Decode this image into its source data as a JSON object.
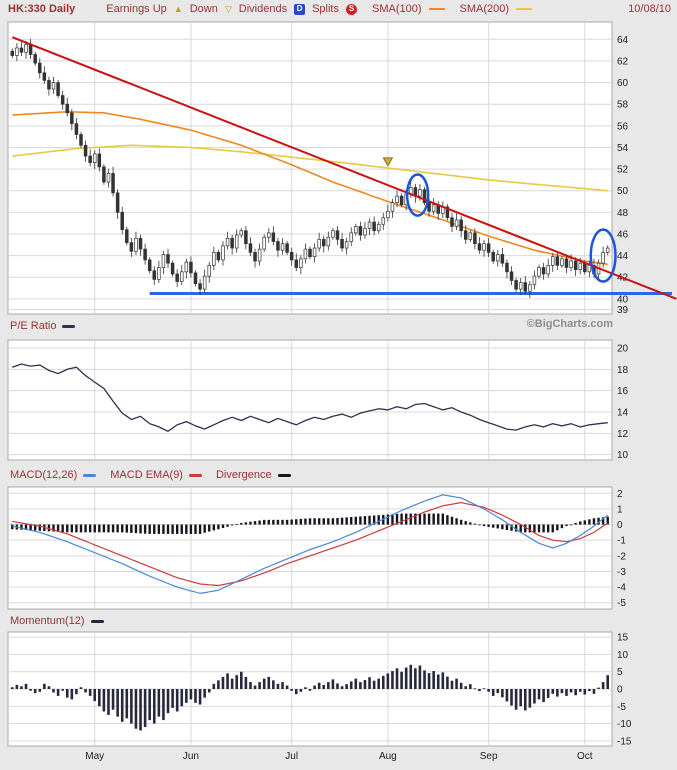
{
  "header": {
    "symbol": "HK:330 Daily",
    "earnings_up_label": "Earnings Up",
    "earnings_up_icon": "▲",
    "down_label": "Down",
    "earnings_down_icon": "▽",
    "dividends_label": "Dividends",
    "dividends_glyph": "D",
    "splits_label": "Splits",
    "splits_glyph": "S",
    "sma100_label": "SMA(100)",
    "sma200_label": "SMA(200)",
    "date": "10/08/10"
  },
  "watermark": "©BigCharts.com",
  "panels": {
    "pe_label": "P/E Ratio",
    "macd_label": "MACD(12,26)",
    "macd_ema_label": "MACD EMA(9)",
    "divergence_label": "Divergence",
    "momentum_label": "Momentum(12)"
  },
  "colors": {
    "background": "#e8e8e8",
    "panel_bg": "#ffffff",
    "grid": "#d9d9d9",
    "panel_border": "#a8a8a8",
    "text": "#222222",
    "header_text": "#993333",
    "candle": "#333333",
    "sma100": "#ef8822",
    "sma200": "#e9c943",
    "trendline": "#cc1111",
    "support": "#2a66e8",
    "annotation": "#1a57d6",
    "macd_line": "#4a86d8",
    "macd_signal": "#cc3b3b",
    "histogram": "#15151f",
    "pe_line": "#31314f",
    "momentum_bar": "#28283c",
    "watermark": "#8c8c8c",
    "marker_gold": "#d2a93c"
  },
  "chart_data": [
    {
      "type": "candlestick",
      "name": "price",
      "title": "HK:330 Daily",
      "n_days": 131,
      "ylim": [
        38.6,
        65.6
      ],
      "y_ticks": [
        64,
        62,
        60,
        58,
        56,
        54,
        52,
        50,
        48,
        46,
        44,
        42,
        40,
        39
      ],
      "x_axis": {
        "labels": [
          "May",
          "Jun",
          "Jul",
          "Aug",
          "Sep",
          "Oct"
        ],
        "day_index": [
          18,
          39,
          61,
          82,
          104,
          125
        ]
      },
      "close": [
        62.5,
        63.2,
        62.8,
        63.5,
        62.6,
        61.8,
        60.9,
        60.2,
        59.4,
        60.0,
        58.8,
        58.0,
        57.2,
        56.2,
        55.2,
        54.2,
        53.2,
        52.6,
        53.4,
        52.2,
        50.8,
        51.6,
        49.8,
        48.0,
        46.4,
        45.2,
        44.4,
        45.6,
        44.6,
        43.6,
        42.6,
        41.8,
        42.9,
        44.1,
        43.3,
        42.3,
        41.6,
        42.5,
        43.4,
        42.4,
        41.4,
        40.9,
        42.1,
        43.1,
        44.3,
        43.6,
        44.9,
        45.6,
        44.7,
        45.9,
        46.3,
        45.1,
        44.3,
        43.5,
        44.6,
        45.7,
        46.1,
        45.3,
        44.5,
        45.1,
        44.3,
        43.6,
        42.9,
        43.7,
        44.6,
        43.9,
        44.7,
        45.5,
        44.9,
        45.7,
        46.3,
        45.5,
        44.7,
        45.3,
        46.1,
        46.7,
        45.9,
        46.5,
        47.1,
        46.3,
        46.9,
        47.5,
        48.1,
        48.9,
        49.5,
        48.7,
        49.7,
        50.3,
        49.5,
        50.1,
        48.9,
        48.1,
        48.7,
        47.9,
        48.5,
        47.5,
        46.7,
        47.3,
        46.3,
        45.5,
        46.1,
        45.1,
        44.5,
        45.1,
        44.3,
        43.5,
        44.1,
        43.3,
        42.5,
        41.7,
        40.9,
        41.5,
        40.7,
        41.3,
        42.1,
        42.9,
        42.3,
        43.1,
        43.9,
        43.1,
        43.7,
        42.9,
        43.5,
        42.7,
        43.3,
        42.5,
        43.1,
        42.3,
        43.3,
        44.3,
        44.7
      ],
      "sma100_keypoints": [
        [
          0,
          57.0
        ],
        [
          12,
          57.3
        ],
        [
          20,
          57.2
        ],
        [
          28,
          56.6
        ],
        [
          39,
          55.6
        ],
        [
          50,
          54.2
        ],
        [
          61,
          52.4
        ],
        [
          70,
          50.8
        ],
        [
          82,
          49.0
        ],
        [
          92,
          47.6
        ],
        [
          104,
          45.8
        ],
        [
          114,
          44.5
        ],
        [
          125,
          43.5
        ],
        [
          130,
          43.2
        ]
      ],
      "sma200_keypoints": [
        [
          0,
          53.2
        ],
        [
          14,
          53.9
        ],
        [
          26,
          54.2
        ],
        [
          39,
          54.0
        ],
        [
          50,
          53.6
        ],
        [
          61,
          53.1
        ],
        [
          72,
          52.6
        ],
        [
          82,
          52.1
        ],
        [
          92,
          51.6
        ],
        [
          104,
          51.0
        ],
        [
          114,
          50.6
        ],
        [
          125,
          50.2
        ],
        [
          130,
          50.0
        ]
      ],
      "trendline": {
        "points": [
          [
            0,
            64.2
          ],
          [
            145,
            40.0
          ]
        ]
      },
      "support_line": {
        "price": 40.5,
        "start_day": 30,
        "extends_to_right_edge": true
      },
      "annotations": {
        "ellipses": [
          {
            "day": 88.5,
            "price": 49.6,
            "rx_days": 2.3,
            "ry_price": 1.9
          },
          {
            "day": 129.0,
            "price": 44.0,
            "rx_days": 2.7,
            "ry_price": 2.4
          }
        ],
        "marker": {
          "day": 82,
          "price": 52.3,
          "type": "earnings-down-triangle"
        }
      }
    },
    {
      "type": "line",
      "name": "pe_ratio",
      "title": "P/E Ratio",
      "ylim": [
        9.5,
        20.75
      ],
      "y_ticks": [
        20,
        18,
        16,
        14,
        12,
        10
      ],
      "keypoints": [
        [
          0,
          18.2
        ],
        [
          2,
          18.5
        ],
        [
          4,
          18.3
        ],
        [
          6,
          18.4
        ],
        [
          8,
          17.9
        ],
        [
          10,
          17.6
        ],
        [
          12,
          18.0
        ],
        [
          14,
          18.2
        ],
        [
          16,
          17.4
        ],
        [
          18,
          16.8
        ],
        [
          20,
          16.2
        ],
        [
          22,
          15.0
        ],
        [
          24,
          13.9
        ],
        [
          26,
          13.3
        ],
        [
          28,
          13.6
        ],
        [
          30,
          12.9
        ],
        [
          32,
          12.6
        ],
        [
          34,
          12.2
        ],
        [
          36,
          12.8
        ],
        [
          38,
          13.1
        ],
        [
          40,
          12.7
        ],
        [
          42,
          12.4
        ],
        [
          44,
          12.8
        ],
        [
          46,
          13.2
        ],
        [
          48,
          13.5
        ],
        [
          50,
          13.2
        ],
        [
          52,
          13.6
        ],
        [
          54,
          13.3
        ],
        [
          56,
          13.0
        ],
        [
          58,
          13.4
        ],
        [
          60,
          13.1
        ],
        [
          62,
          12.8
        ],
        [
          64,
          13.2
        ],
        [
          66,
          13.5
        ],
        [
          68,
          13.3
        ],
        [
          70,
          13.6
        ],
        [
          72,
          13.8
        ],
        [
          74,
          13.5
        ],
        [
          76,
          13.9
        ],
        [
          78,
          14.1
        ],
        [
          80,
          14.3
        ],
        [
          82,
          14.2
        ],
        [
          84,
          14.5
        ],
        [
          86,
          14.3
        ],
        [
          88,
          14.7
        ],
        [
          90,
          14.8
        ],
        [
          92,
          14.5
        ],
        [
          94,
          14.2
        ],
        [
          96,
          14.4
        ],
        [
          98,
          14.0
        ],
        [
          100,
          13.7
        ],
        [
          102,
          13.3
        ],
        [
          104,
          13.0
        ],
        [
          106,
          12.7
        ],
        [
          108,
          12.4
        ],
        [
          110,
          12.3
        ],
        [
          112,
          12.6
        ],
        [
          114,
          12.8
        ],
        [
          116,
          12.6
        ],
        [
          118,
          12.9
        ],
        [
          120,
          12.7
        ],
        [
          122,
          12.9
        ],
        [
          124,
          12.6
        ],
        [
          126,
          12.8
        ],
        [
          128,
          12.9
        ],
        [
          130,
          13.0
        ]
      ]
    },
    {
      "type": "line+histogram",
      "name": "macd",
      "title": "MACD(12,26)",
      "ylim": [
        -5.4,
        2.4
      ],
      "y_ticks": [
        2,
        1,
        0,
        -1,
        -2,
        -3,
        -4,
        -5
      ],
      "series": [
        {
          "name": "MACD(12,26)",
          "color": "blue",
          "keypoints": [
            [
              0,
              -0.1
            ],
            [
              6,
              -0.5
            ],
            [
              12,
              -1.1
            ],
            [
              18,
              -1.8
            ],
            [
              24,
              -2.5
            ],
            [
              30,
              -3.3
            ],
            [
              36,
              -4.0
            ],
            [
              41,
              -4.4
            ],
            [
              45,
              -4.2
            ],
            [
              50,
              -3.5
            ],
            [
              55,
              -2.8
            ],
            [
              60,
              -2.2
            ],
            [
              65,
              -1.6
            ],
            [
              70,
              -1.1
            ],
            [
              75,
              -0.5
            ],
            [
              80,
              0.2
            ],
            [
              85,
              0.9
            ],
            [
              90,
              1.5
            ],
            [
              94,
              1.9
            ],
            [
              98,
              1.7
            ],
            [
              103,
              1.0
            ],
            [
              107,
              0.3
            ],
            [
              111,
              -0.5
            ],
            [
              115,
              -1.2
            ],
            [
              118,
              -1.5
            ],
            [
              121,
              -1.2
            ],
            [
              124,
              -0.7
            ],
            [
              127,
              -0.1
            ],
            [
              130,
              0.6
            ]
          ]
        },
        {
          "name": "MACD EMA(9)",
          "color": "red",
          "keypoints": [
            [
              0,
              0.2
            ],
            [
              6,
              -0.1
            ],
            [
              12,
              -0.6
            ],
            [
              18,
              -1.3
            ],
            [
              24,
              -2.0
            ],
            [
              30,
              -2.7
            ],
            [
              36,
              -3.4
            ],
            [
              41,
              -3.8
            ],
            [
              45,
              -3.9
            ],
            [
              50,
              -3.6
            ],
            [
              55,
              -3.1
            ],
            [
              60,
              -2.5
            ],
            [
              65,
              -2.0
            ],
            [
              70,
              -1.5
            ],
            [
              75,
              -1.0
            ],
            [
              80,
              -0.4
            ],
            [
              85,
              0.2
            ],
            [
              90,
              0.8
            ],
            [
              94,
              1.2
            ],
            [
              98,
              1.4
            ],
            [
              103,
              1.1
            ],
            [
              107,
              0.6
            ],
            [
              111,
              0.0
            ],
            [
              115,
              -0.7
            ],
            [
              118,
              -1.0
            ],
            [
              121,
              -1.1
            ],
            [
              124,
              -0.9
            ],
            [
              127,
              -0.5
            ],
            [
              130,
              0.1
            ]
          ]
        }
      ],
      "histogram": {
        "name": "Divergence",
        "derived": "macd_minus_signal"
      }
    },
    {
      "type": "bar",
      "name": "momentum",
      "title": "Momentum(12)",
      "ylim": [
        -16.5,
        16.5
      ],
      "y_ticks": [
        15,
        10,
        5,
        0,
        -5,
        -10,
        -15
      ],
      "values": [
        0.5,
        1.2,
        0.8,
        1.5,
        -0.5,
        -1.2,
        -0.8,
        1.5,
        0.8,
        -1.0,
        -2.0,
        -0.5,
        -2.5,
        -3.0,
        -1.5,
        0.5,
        -1.0,
        -2.0,
        -3.5,
        -5.0,
        -6.5,
        -7.5,
        -6.0,
        -8.0,
        -9.5,
        -8.5,
        -10.0,
        -11.5,
        -12.0,
        -11.0,
        -9.0,
        -10.0,
        -8.0,
        -9.0,
        -7.0,
        -5.5,
        -6.5,
        -5.0,
        -4.0,
        -3.0,
        -4.0,
        -4.5,
        -2.5,
        -1.0,
        1.5,
        2.5,
        3.5,
        4.5,
        3.0,
        4.0,
        5.0,
        3.5,
        2.0,
        1.0,
        2.0,
        3.0,
        3.5,
        2.5,
        1.5,
        2.0,
        1.0,
        -0.5,
        -1.5,
        -0.8,
        0.5,
        -0.5,
        1.0,
        1.8,
        1.2,
        2.0,
        2.8,
        1.6,
        0.8,
        1.4,
        2.2,
        3.0,
        2.0,
        2.6,
        3.4,
        2.4,
        3.0,
        3.8,
        4.5,
        5.2,
        6.0,
        5.0,
        6.2,
        7.0,
        6.0,
        6.8,
        5.4,
        4.6,
        5.2,
        4.2,
        4.8,
        3.6,
        2.4,
        3.0,
        1.8,
        0.8,
        1.4,
        0.2,
        -0.6,
        0.2,
        -0.8,
        -2.0,
        -1.2,
        -2.4,
        -3.6,
        -4.8,
        -6.0,
        -5.0,
        -6.2,
        -5.4,
        -4.2,
        -3.0,
        -3.8,
        -2.6,
        -1.4,
        -2.2,
        -1.2,
        -2.0,
        -1.0,
        -1.8,
        -0.8,
        -1.6,
        -0.6,
        -1.4,
        0.4,
        2.0,
        4.0
      ]
    }
  ]
}
